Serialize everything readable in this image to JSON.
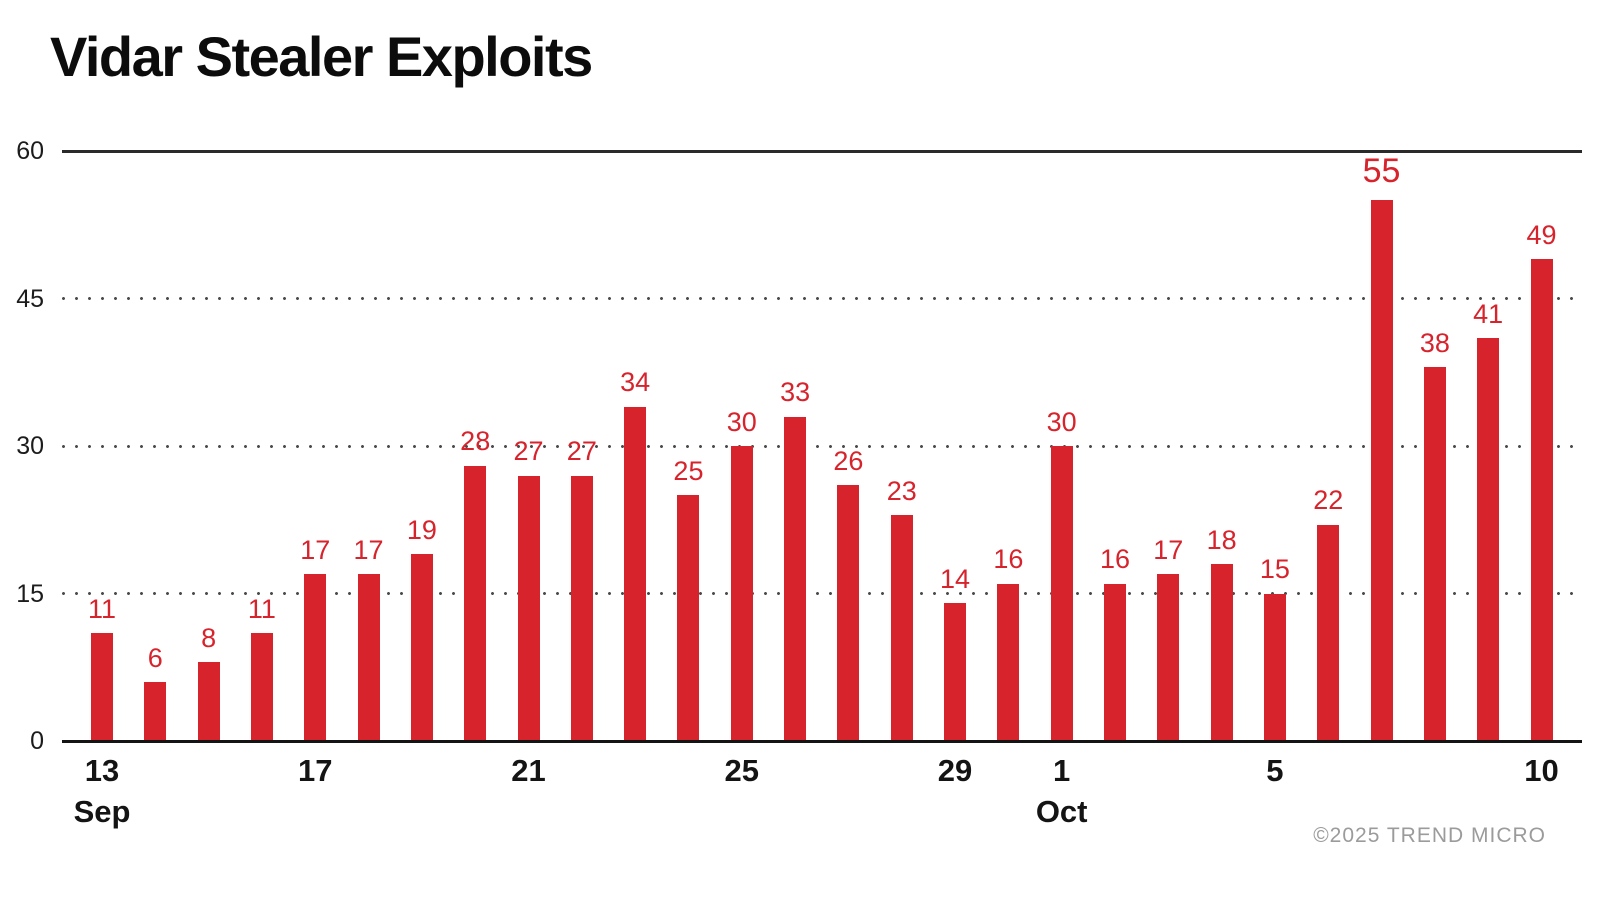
{
  "title": "Vidar Stealer Exploits",
  "copyright": "©2025 TREND MICRO",
  "colors": {
    "bar": "#d7232c",
    "value_label": "#d7232c",
    "axis_text": "#1c1c1c",
    "xtick_text": "#141414",
    "grid_dot": "#4c4c4c",
    "top_line": "#2a2a2a",
    "baseline": "#141414",
    "copyright_text": "#9b9b9b",
    "background": "#ffffff"
  },
  "chart_data": {
    "type": "bar",
    "title": "Vidar Stealer Exploits",
    "categories": [
      "Sep 13",
      "Sep 14",
      "Sep 15",
      "Sep 16",
      "Sep 17",
      "Sep 18",
      "Sep 19",
      "Sep 20",
      "Sep 21",
      "Sep 22",
      "Sep 23",
      "Sep 24",
      "Sep 25",
      "Sep 26",
      "Sep 27",
      "Sep 28",
      "Sep 29",
      "Sep 30",
      "Oct 1",
      "Oct 2",
      "Oct 3",
      "Oct 4",
      "Oct 5",
      "Oct 6",
      "Oct 7",
      "Oct 8",
      "Oct 9",
      "Oct 10"
    ],
    "values": [
      11,
      6,
      8,
      11,
      17,
      17,
      19,
      28,
      27,
      27,
      34,
      25,
      30,
      33,
      26,
      23,
      14,
      16,
      30,
      16,
      17,
      18,
      15,
      22,
      55,
      38,
      41,
      49
    ],
    "ylim": [
      0,
      60
    ],
    "yticks": [
      0,
      15,
      30,
      45,
      60
    ],
    "xticks": [
      {
        "index": 0,
        "label": "13",
        "month": "Sep"
      },
      {
        "index": 4,
        "label": "17"
      },
      {
        "index": 8,
        "label": "21"
      },
      {
        "index": 12,
        "label": "25"
      },
      {
        "index": 16,
        "label": "29"
      },
      {
        "index": 18,
        "label": "1",
        "month": "Oct"
      },
      {
        "index": 22,
        "label": "5"
      },
      {
        "index": 27,
        "label": "10"
      }
    ],
    "grid": "horizontal-dotted",
    "legend": "none",
    "data_labels": "above-bars",
    "emphasized_value_index": 24
  }
}
